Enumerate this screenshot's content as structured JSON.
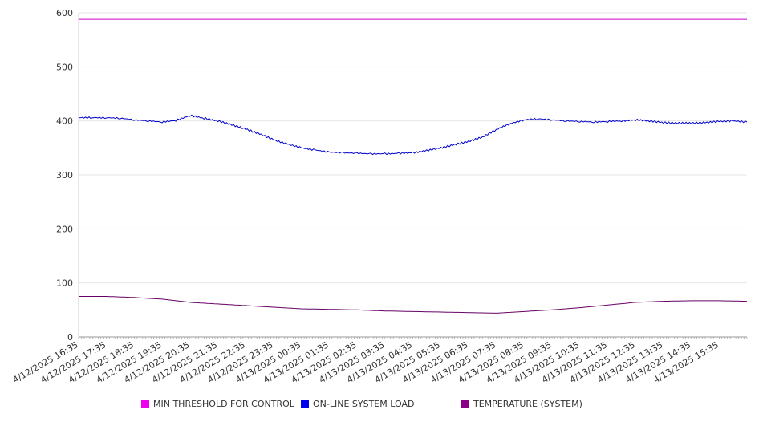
{
  "chart_data": {
    "type": "line",
    "ylim": [
      0,
      600
    ],
    "y_ticks": [
      "0",
      "100",
      "200",
      "300",
      "400",
      "500",
      "600"
    ],
    "grid": true,
    "legend_position": "bottom",
    "x_labels": [
      "4/12/2025 16:35",
      "4/12/2025 17:35",
      "4/12/2025 18:35",
      "4/12/2025 19:35",
      "4/12/2025 20:35",
      "4/12/2025 21:35",
      "4/12/2025 22:35",
      "4/12/2025 23:35",
      "4/13/2025 00:35",
      "4/13/2025 01:35",
      "4/13/2025 02:35",
      "4/13/2025 03:35",
      "4/13/2025 04:35",
      "4/13/2025 05:35",
      "4/13/2025 06:35",
      "4/13/2025 07:35",
      "4/13/2025 08:35",
      "4/13/2025 09:35",
      "4/13/2025 10:35",
      "4/13/2025 11:35",
      "4/13/2025 12:35",
      "4/13/2025 13:35",
      "4/13/2025 14:35",
      "4/13/2025 15:35"
    ],
    "x_hours": [
      0,
      1,
      2,
      3,
      4,
      5,
      6,
      7,
      8,
      9,
      10,
      11,
      12,
      13,
      14,
      15,
      16,
      17,
      18,
      19,
      20,
      21,
      22,
      23
    ],
    "x_range_hours": [
      0,
      24
    ],
    "series": [
      {
        "name": "MIN THRESHOLD FOR CONTROL",
        "color": "#cc00cc",
        "swatch": "#ee00ee",
        "x": [
          0,
          24
        ],
        "values": [
          588,
          588
        ]
      },
      {
        "name": "ON-LINE SYSTEM LOAD",
        "color": "#0000cc",
        "swatch": "#0000ee",
        "x": [
          0,
          0.5,
          1,
          1.5,
          2,
          2.5,
          3,
          3.5,
          4,
          4.5,
          5,
          5.5,
          6,
          6.5,
          7,
          7.5,
          8,
          8.5,
          9,
          9.5,
          10,
          10.5,
          11,
          11.5,
          12,
          12.5,
          13,
          13.5,
          14,
          14.5,
          15,
          15.5,
          16,
          16.5,
          17,
          17.5,
          18,
          18.5,
          19,
          19.5,
          20,
          20.5,
          21,
          21.5,
          22,
          22.5,
          23,
          23.5,
          24
        ],
        "values": [
          406,
          406,
          406,
          405,
          402,
          400,
          398,
          401,
          410,
          405,
          400,
          393,
          385,
          376,
          365,
          357,
          350,
          346,
          342,
          341,
          340,
          339,
          339,
          340,
          341,
          345,
          350,
          356,
          362,
          370,
          384,
          395,
          402,
          404,
          402,
          400,
          399,
          398,
          399,
          400,
          402,
          400,
          397,
          396,
          396,
          397,
          399,
          400,
          398
        ]
      },
      {
        "name": "TEMPERATURE (SYSTEM)",
        "color": "#660066",
        "swatch": "#880088",
        "x": [
          0,
          1,
          2,
          3,
          4,
          5,
          6,
          7,
          8,
          9,
          10,
          11,
          12,
          13,
          14,
          15,
          16,
          17,
          18,
          19,
          20,
          21,
          22,
          23,
          24
        ],
        "values": [
          75,
          75,
          73,
          70,
          64,
          61,
          58,
          55,
          52,
          51,
          50,
          48,
          47,
          46,
          45,
          44,
          47,
          50,
          54,
          59,
          64,
          66,
          67,
          67,
          66
        ]
      }
    ]
  }
}
